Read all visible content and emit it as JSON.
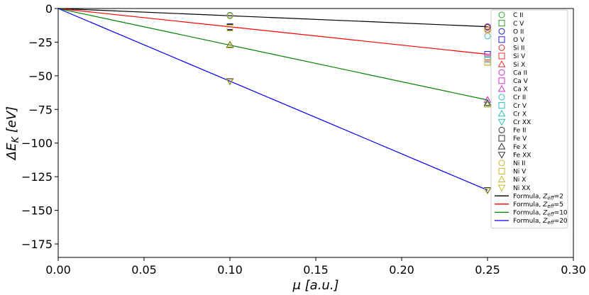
{
  "chart_data": {
    "type": "scatter",
    "xlabel": "μ [a.u.]",
    "ylabel": "ΔE_K [eV]",
    "xlim": [
      0.0,
      0.3
    ],
    "ylim": [
      -185,
      0
    ],
    "x_ticks": [
      0.0,
      0.05,
      0.1,
      0.15,
      0.2,
      0.25,
      0.3
    ],
    "x_tick_labels": [
      "0.00",
      "0.05",
      "0.10",
      "0.15",
      "0.20",
      "0.25",
      "0.30"
    ],
    "y_ticks": [
      0,
      -25,
      -50,
      -75,
      -100,
      -125,
      -150,
      -175
    ],
    "y_tick_labels": [
      "0",
      "−25",
      "−50",
      "−75",
      "−100",
      "−125",
      "−150",
      "−175"
    ],
    "grid": false,
    "legend_position": "top-right",
    "series": [
      {
        "name": "C II",
        "marker": "circle",
        "color": "#2ca02c",
        "x": [
          0.1,
          0.25
        ],
        "y": [
          -5,
          -13.5
        ]
      },
      {
        "name": "C V",
        "marker": "square",
        "color": "#2ca02c",
        "x": [
          0.1,
          0.25
        ],
        "y": [
          -13.5,
          -34
        ]
      },
      {
        "name": "O II",
        "marker": "circle",
        "color": "#1f1fd6",
        "x": [
          0.1,
          0.25
        ],
        "y": [
          -5,
          -13.5
        ]
      },
      {
        "name": "O V",
        "marker": "square",
        "color": "#1f1fd6",
        "x": [
          0.1,
          0.25
        ],
        "y": [
          -13.5,
          -34
        ]
      },
      {
        "name": "Si II",
        "marker": "circle",
        "color": "#e03030",
        "x": [
          0.1,
          0.25
        ],
        "y": [
          -5,
          -15.5
        ]
      },
      {
        "name": "Si V",
        "marker": "square",
        "color": "#e03030",
        "x": [
          0.1,
          0.25
        ],
        "y": [
          -14,
          -37
        ]
      },
      {
        "name": "Si X",
        "marker": "triangle-up",
        "color": "#e03030",
        "x": [
          0.1,
          0.25
        ],
        "y": [
          -27,
          -68
        ]
      },
      {
        "name": "Ca II",
        "marker": "circle",
        "color": "#d633d6",
        "x": [
          0.1,
          0.25
        ],
        "y": [
          -5,
          -13.5
        ]
      },
      {
        "name": "Ca V",
        "marker": "square",
        "color": "#d633d6",
        "x": [
          0.1,
          0.25
        ],
        "y": [
          -14,
          -36
        ]
      },
      {
        "name": "Ca X",
        "marker": "triangle-up",
        "color": "#d633d6",
        "x": [
          0.1,
          0.25
        ],
        "y": [
          -27,
          -68
        ]
      },
      {
        "name": "Cr II",
        "marker": "circle",
        "color": "#30c0c0",
        "x": [
          0.1,
          0.25
        ],
        "y": [
          -5,
          -20.5
        ]
      },
      {
        "name": "Cr V",
        "marker": "square",
        "color": "#30c0c0",
        "x": [
          0.1,
          0.25
        ],
        "y": [
          -14,
          -38
        ]
      },
      {
        "name": "Cr X",
        "marker": "triangle-up",
        "color": "#30c0c0",
        "x": [
          0.1,
          0.25
        ],
        "y": [
          -27,
          -70
        ]
      },
      {
        "name": "Cr XX",
        "marker": "triangle-down",
        "color": "#30c0c0",
        "x": [
          0.1,
          0.25
        ],
        "y": [
          -54,
          -135
        ]
      },
      {
        "name": "Fe II",
        "marker": "circle",
        "color": "#333333",
        "x": [
          0.1,
          0.25
        ],
        "y": [
          -5.5,
          -14
        ]
      },
      {
        "name": "Fe V",
        "marker": "square",
        "color": "#333333",
        "x": [
          0.1,
          0.25
        ],
        "y": [
          -14,
          -40
        ]
      },
      {
        "name": "Fe X",
        "marker": "triangle-up",
        "color": "#333333",
        "x": [
          0.1,
          0.25
        ],
        "y": [
          -27,
          -70.5
        ]
      },
      {
        "name": "Fe XX",
        "marker": "triangle-down",
        "color": "#333333",
        "x": [
          0.1,
          0.25
        ],
        "y": [
          -54,
          -135
        ]
      },
      {
        "name": "Ni II",
        "marker": "circle",
        "color": "#c8b830",
        "x": [
          0.1,
          0.25
        ],
        "y": [
          -5.5,
          -16.5
        ]
      },
      {
        "name": "Ni V",
        "marker": "square",
        "color": "#c8b830",
        "x": [
          0.1,
          0.25
        ],
        "y": [
          -14.5,
          -40
        ]
      },
      {
        "name": "Ni X",
        "marker": "triangle-up",
        "color": "#c8b830",
        "x": [
          0.1,
          0.25
        ],
        "y": [
          -27.5,
          -71.5
        ]
      },
      {
        "name": "Ni XX",
        "marker": "triangle-down",
        "color": "#c8b830",
        "x": [
          0.1,
          0.25
        ],
        "y": [
          -54.5,
          -135.5
        ]
      }
    ],
    "lines": [
      {
        "name": "Formula, Z_eff=2",
        "label_prefix": "Formula, ",
        "z_sub": "eff",
        "z_value": "=2",
        "color": "#000000",
        "x": [
          0.0,
          0.25
        ],
        "y": [
          0,
          -13.5
        ]
      },
      {
        "name": "Formula, Z_eff=5",
        "label_prefix": "Formula, ",
        "z_sub": "eff",
        "z_value": "=5",
        "color": "#ff0000",
        "x": [
          0.0,
          0.25
        ],
        "y": [
          0,
          -34
        ]
      },
      {
        "name": "Formula, Z_eff=10",
        "label_prefix": "Formula, ",
        "z_sub": "eff",
        "z_value": "=10",
        "color": "#008000",
        "x": [
          0.0,
          0.25
        ],
        "y": [
          0,
          -68
        ]
      },
      {
        "name": "Formula, Z_eff=20",
        "label_prefix": "Formula, ",
        "z_sub": "eff",
        "z_value": "=20",
        "color": "#0000ff",
        "x": [
          0.0,
          0.25
        ],
        "y": [
          0,
          -135
        ]
      }
    ]
  }
}
